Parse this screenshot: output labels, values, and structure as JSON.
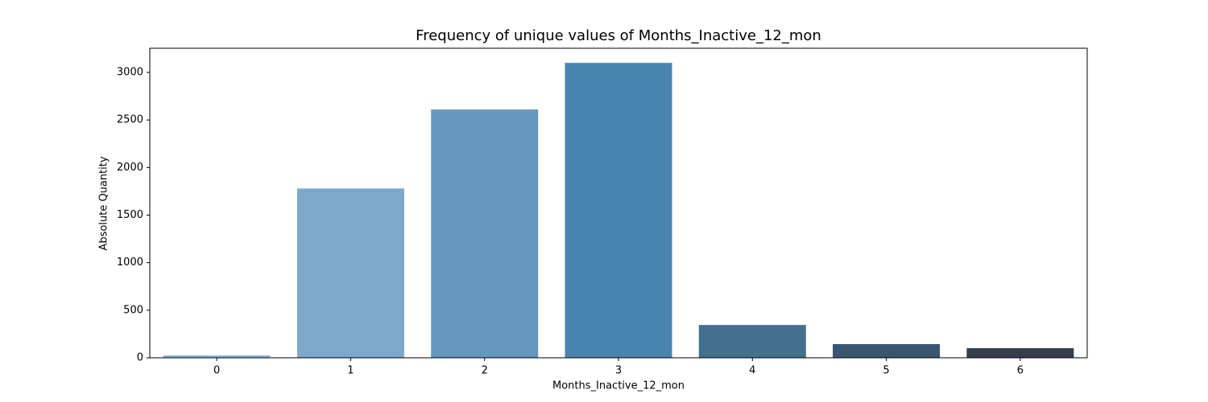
{
  "chart_data": {
    "type": "bar",
    "title": "Frequency of unique values of Months_Inactive_12_mon",
    "x_label": "Months_Inactive_12_mon",
    "y_label": "Absolute Quantity",
    "categories": [
      "0",
      "1",
      "2",
      "3",
      "4",
      "5",
      "6"
    ],
    "values": [
      25,
      1780,
      2610,
      3100,
      345,
      144,
      101
    ],
    "colors": [
      "#8db4d9",
      "#7ea8c9",
      "#6497bd",
      "#4984b1",
      "#44708f",
      "#3a5670",
      "#353f4a"
    ],
    "ylim": [
      0,
      3254
    ],
    "yticks": [
      0,
      500,
      1000,
      1500,
      2000,
      2500,
      3000
    ],
    "grid": false
  }
}
